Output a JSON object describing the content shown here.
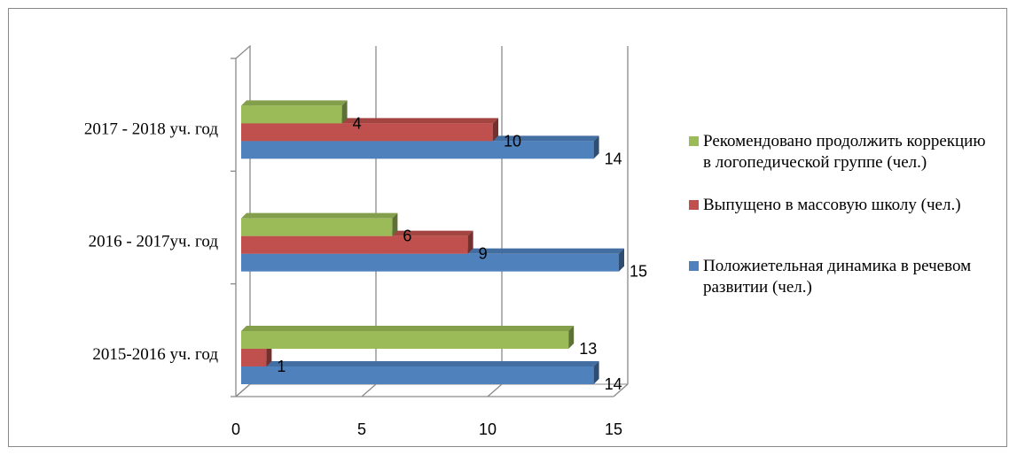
{
  "chart_data": {
    "type": "bar",
    "orientation": "horizontal",
    "three_d": true,
    "categories": [
      "2015-2016 уч. год",
      "2016 - 2017уч. год",
      "2017 - 2018 уч. год"
    ],
    "series": [
      {
        "name": "Положиетельная динамика в речевом развитии (чел.)",
        "values": [
          14,
          15,
          14
        ],
        "color": "#4f81bd"
      },
      {
        "name": "Выпущено в массовую школу (чел.)",
        "values": [
          1,
          9,
          10
        ],
        "color": "#c0504d"
      },
      {
        "name": "Рекомендовано продолжить коррекцию в логопедической группе (чел.)",
        "values": [
          13,
          6,
          4
        ],
        "color": "#9bbb59"
      }
    ],
    "xlim": [
      0,
      15
    ],
    "xticks": [
      "0",
      "5",
      "10",
      "15"
    ],
    "grid": true,
    "legend_position": "right"
  },
  "legend": {
    "items": [
      {
        "label": "Рекомендовано продолжить коррекцию в логопедической группе (чел.)",
        "color": "#9bbb59"
      },
      {
        "label": "Выпущено в массовую школу (чел.)",
        "color": "#c0504d"
      },
      {
        "label": "Положиетельная динамика в речевом развитии (чел.)",
        "color": "#4f81bd"
      }
    ]
  }
}
